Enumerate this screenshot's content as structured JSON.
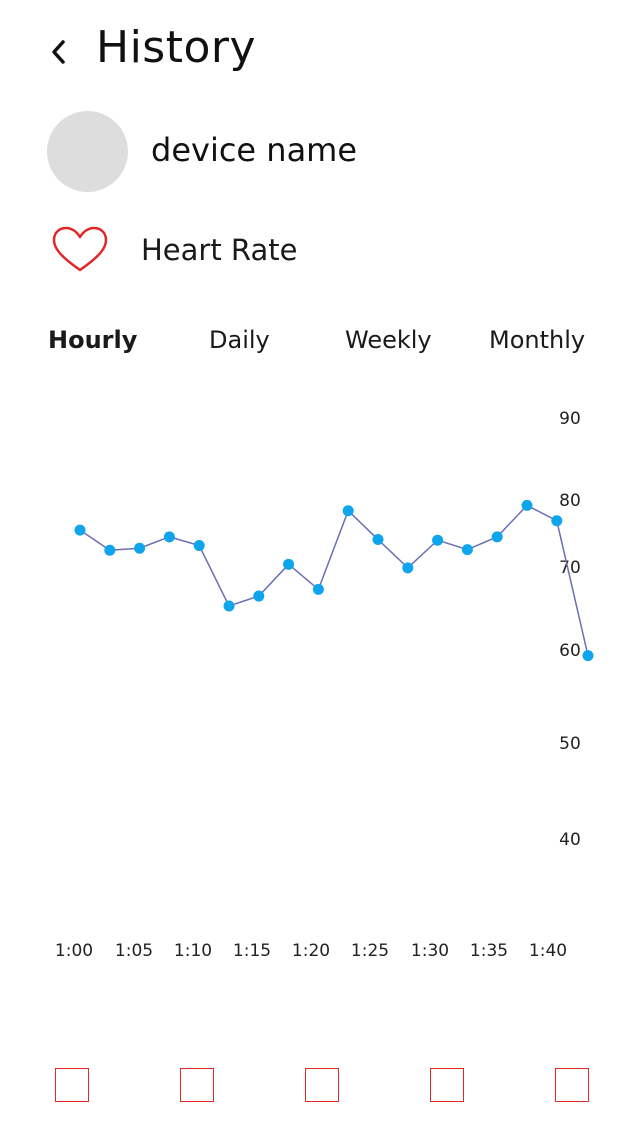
{
  "header": {
    "title": "History",
    "back_icon": "chevron-left-icon"
  },
  "device": {
    "name": "device name",
    "avatar_color": "#dddddd"
  },
  "metric": {
    "label": "Heart Rate",
    "icon": "heart-outline-icon",
    "icon_color": "#e02828"
  },
  "tabs": [
    {
      "label": "Hourly",
      "active": true
    },
    {
      "label": "Daily",
      "active": false
    },
    {
      "label": "Weekly",
      "active": false
    },
    {
      "label": "Monthly",
      "active": false
    }
  ],
  "bottom_nav": {
    "count": 5,
    "item_icon": "square-outline-icon",
    "color": "#e02828"
  },
  "chart_data": {
    "type": "line",
    "title": "",
    "xlabel": "",
    "ylabel": "",
    "x_ticks": [
      "1:00",
      "1:05",
      "1:10",
      "1:15",
      "1:20",
      "1:25",
      "1:30",
      "1:35",
      "1:40"
    ],
    "y_ticks": [
      90,
      80,
      70,
      60,
      50,
      40
    ],
    "x": [
      "1:00",
      "1:02.5",
      "1:05",
      "1:07.5",
      "1:10",
      "1:12.5",
      "1:15",
      "1:17.5",
      "1:20",
      "1:22.5",
      "1:25",
      "1:27.5",
      "1:30",
      "1:32.5",
      "1:35",
      "1:37.5",
      "1:40",
      "1:42.5"
    ],
    "series": [
      {
        "values": [
          75.5,
          72.5,
          72.8,
          74.5,
          73.2,
          65.3,
          66.5,
          70.4,
          67.3,
          78.4,
          74.1,
          69.9,
          74.0,
          72.6,
          74.5,
          79.2,
          76.9,
          59.4
        ],
        "color": "#0ea5ec",
        "line_color": "#6b6fb5"
      }
    ],
    "grid": false,
    "legend": "none"
  }
}
